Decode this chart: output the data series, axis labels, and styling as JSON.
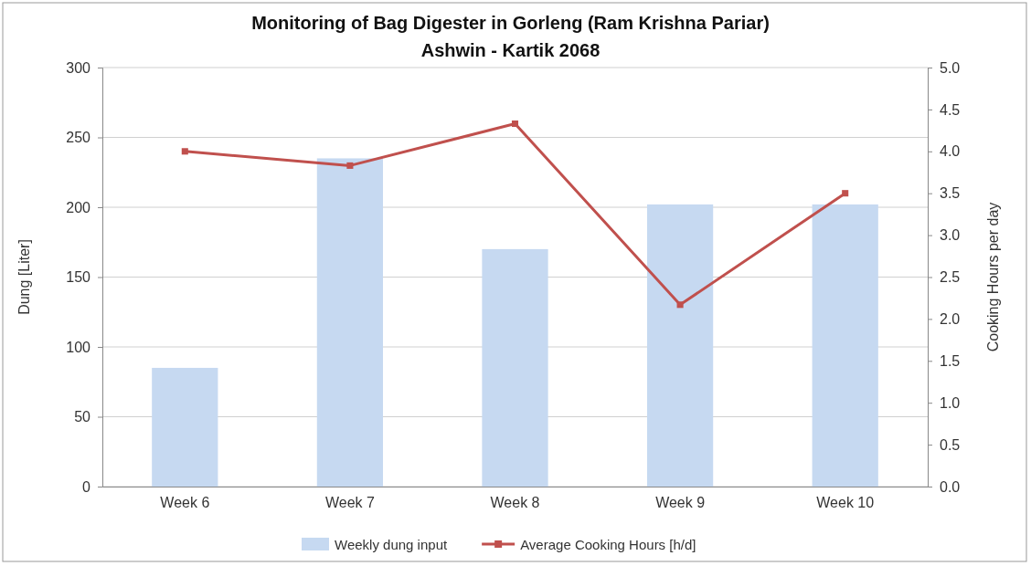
{
  "chart_data": {
    "type": "bar",
    "title": "Monitoring of Bag Digester in Gorleng (Ram Krishna Pariar)",
    "subtitle": "Ashwin - Kartik 2068",
    "ylabel": "Dung [Liter]",
    "y2label": "Cooking Hours per day",
    "categories": [
      "Week 6",
      "Week 7",
      "Week 8",
      "Week 9",
      "Week 10"
    ],
    "series": [
      {
        "name": "Weekly dung input",
        "color": "#c6d9f1",
        "values": [
          85,
          235,
          170,
          202,
          202
        ]
      },
      {
        "name": "Average Cooking Hours [h/d]",
        "type": "line",
        "axis": "y2",
        "color": "#c0504d",
        "marker": "square",
        "line_style": "solid",
        "values": [
          4.0,
          3.83,
          4.33,
          2.17,
          3.5
        ]
      }
    ],
    "ylim": [
      0,
      300
    ],
    "yticks": [
      0,
      50,
      100,
      150,
      200,
      250,
      300
    ],
    "y2lim": [
      0,
      5
    ],
    "y2ticks": [
      {
        "value": 0,
        "label": "0.0"
      },
      {
        "value": 0.5,
        "label": "0.5"
      },
      {
        "value": 1,
        "label": "1.0"
      },
      {
        "value": 1.5,
        "label": "1.5"
      },
      {
        "value": 2,
        "label": "2.0"
      },
      {
        "value": 2.5,
        "label": "2.5"
      },
      {
        "value": 3,
        "label": "3.0"
      },
      {
        "value": 3.5,
        "label": "3.5"
      },
      {
        "value": 4,
        "label": "4.0"
      },
      {
        "value": 4.5,
        "label": "4.5"
      },
      {
        "value": 5,
        "label": "5.0"
      }
    ],
    "grid": "y",
    "legend": "bottom"
  }
}
